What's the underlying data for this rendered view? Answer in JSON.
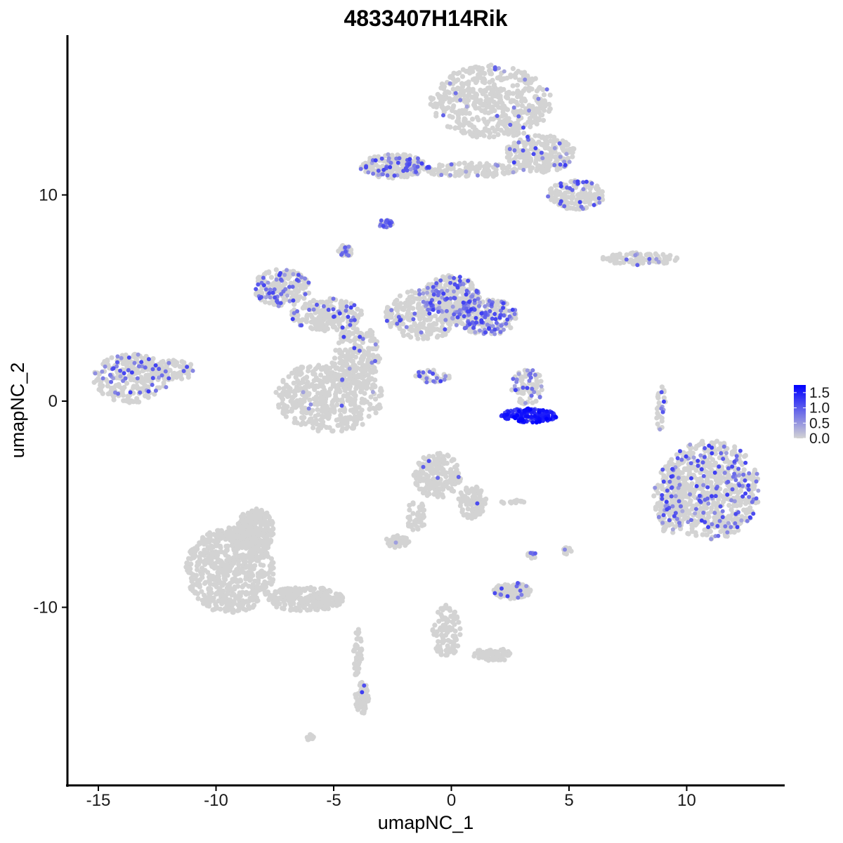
{
  "chart_data": {
    "type": "scatter",
    "title": "4833407H14Rik",
    "xlabel": "umapNC_1",
    "ylabel": "umapNC_2",
    "xlim": [
      -16.4,
      14.3
    ],
    "ylim": [
      -18.5,
      17.7
    ],
    "x_ticks": [
      -15,
      -10,
      -5,
      0,
      5,
      10
    ],
    "x_tick_labels": [
      "-15",
      "-10",
      "-5",
      "0",
      "5",
      "10"
    ],
    "y_ticks": [
      -10,
      0,
      10
    ],
    "y_tick_labels": [
      "-10",
      "0",
      "10"
    ],
    "grid": false,
    "legend": {
      "position": "right",
      "type": "colorbar",
      "range": [
        0,
        1.75
      ],
      "ticks": [
        0.0,
        0.5,
        1.0,
        1.5
      ],
      "tick_labels": [
        "0.0",
        "0.5",
        "1.0",
        "1.5"
      ]
    },
    "colors": {
      "low": "#d3d3d3",
      "high": "#0000ff"
    },
    "clusters": [
      {
        "x": 1.7,
        "y": 14.5,
        "rx": 2.6,
        "ry": 1.8,
        "n": 500,
        "expr_frac": 0.04
      },
      {
        "x": 3.8,
        "y": 12.0,
        "rx": 1.5,
        "ry": 0.9,
        "n": 240,
        "expr_frac": 0.08
      },
      {
        "x": 5.3,
        "y": 10.0,
        "rx": 1.2,
        "ry": 0.7,
        "n": 160,
        "expr_frac": 0.12
      },
      {
        "x": -2.5,
        "y": 11.4,
        "rx": 1.4,
        "ry": 0.6,
        "n": 200,
        "expr_frac": 0.28
      },
      {
        "x": 0.8,
        "y": 11.2,
        "rx": 2.0,
        "ry": 0.35,
        "n": 120,
        "expr_frac": 0.1
      },
      {
        "x": -2.8,
        "y": 8.6,
        "rx": 0.3,
        "ry": 0.2,
        "n": 35,
        "expr_frac": 0.55
      },
      {
        "x": -4.5,
        "y": 7.3,
        "rx": 0.3,
        "ry": 0.3,
        "n": 30,
        "expr_frac": 0.5
      },
      {
        "x": -7.2,
        "y": 5.5,
        "rx": 1.2,
        "ry": 0.9,
        "n": 200,
        "expr_frac": 0.2
      },
      {
        "x": -5.3,
        "y": 4.2,
        "rx": 1.5,
        "ry": 0.8,
        "n": 200,
        "expr_frac": 0.15
      },
      {
        "x": -4.0,
        "y": 2.2,
        "rx": 1.0,
        "ry": 1.5,
        "n": 200,
        "expr_frac": 0.05
      },
      {
        "x": -5.2,
        "y": 0.2,
        "rx": 2.3,
        "ry": 1.7,
        "n": 480,
        "expr_frac": 0.02
      },
      {
        "x": -1.2,
        "y": 4.2,
        "rx": 1.6,
        "ry": 1.2,
        "n": 260,
        "expr_frac": 0.12
      },
      {
        "x": 0.0,
        "y": 5.0,
        "rx": 1.2,
        "ry": 1.1,
        "n": 240,
        "expr_frac": 0.32
      },
      {
        "x": 1.5,
        "y": 4.1,
        "rx": 1.3,
        "ry": 0.9,
        "n": 230,
        "expr_frac": 0.42
      },
      {
        "x": -0.8,
        "y": 1.2,
        "rx": 0.8,
        "ry": 0.3,
        "n": 40,
        "expr_frac": 0.4
      },
      {
        "x": -13.6,
        "y": 1.1,
        "rx": 1.6,
        "ry": 1.2,
        "n": 260,
        "expr_frac": 0.2
      },
      {
        "x": -11.8,
        "y": 1.5,
        "rx": 0.9,
        "ry": 0.5,
        "n": 80,
        "expr_frac": 0.05
      },
      {
        "x": 3.2,
        "y": 0.7,
        "rx": 0.7,
        "ry": 0.9,
        "n": 80,
        "expr_frac": 0.4
      },
      {
        "x": 3.3,
        "y": -0.7,
        "rx": 1.2,
        "ry": 0.35,
        "n": 170,
        "expr_frac": 0.95
      },
      {
        "x": 8.0,
        "y": 6.9,
        "rx": 1.6,
        "ry": 0.3,
        "n": 90,
        "expr_frac": 0.08
      },
      {
        "x": 8.9,
        "y": -0.3,
        "rx": 0.2,
        "ry": 1.1,
        "n": 30,
        "expr_frac": 0.2
      },
      {
        "x": 11.0,
        "y": -4.3,
        "rx": 2.1,
        "ry": 2.4,
        "n": 700,
        "expr_frac": 0.18
      },
      {
        "x": 9.3,
        "y": -4.8,
        "rx": 0.7,
        "ry": 1.7,
        "n": 150,
        "expr_frac": 0.16
      },
      {
        "x": -0.6,
        "y": -3.6,
        "rx": 1.0,
        "ry": 1.1,
        "n": 180,
        "expr_frac": 0.02
      },
      {
        "x": 0.9,
        "y": -4.9,
        "rx": 0.6,
        "ry": 0.8,
        "n": 90,
        "expr_frac": 0.02
      },
      {
        "x": -2.3,
        "y": -6.8,
        "rx": 0.5,
        "ry": 0.3,
        "n": 50,
        "expr_frac": 0.02
      },
      {
        "x": -1.5,
        "y": -5.6,
        "rx": 0.4,
        "ry": 0.8,
        "n": 40,
        "expr_frac": 0.0
      },
      {
        "x": -9.4,
        "y": -8.2,
        "rx": 1.9,
        "ry": 2.1,
        "n": 620,
        "expr_frac": 0.0
      },
      {
        "x": -8.3,
        "y": -6.2,
        "rx": 0.8,
        "ry": 1.0,
        "n": 200,
        "expr_frac": 0.0
      },
      {
        "x": -6.2,
        "y": -9.6,
        "rx": 1.6,
        "ry": 0.6,
        "n": 220,
        "expr_frac": 0.0
      },
      {
        "x": -3.8,
        "y": -14.4,
        "rx": 0.3,
        "ry": 0.8,
        "n": 70,
        "expr_frac": 0.02
      },
      {
        "x": -4.0,
        "y": -12.2,
        "rx": 0.2,
        "ry": 1.2,
        "n": 40,
        "expr_frac": 0.0
      },
      {
        "x": 2.6,
        "y": -9.2,
        "rx": 0.8,
        "ry": 0.4,
        "n": 120,
        "expr_frac": 0.08
      },
      {
        "x": -0.2,
        "y": -11.2,
        "rx": 0.6,
        "ry": 1.3,
        "n": 100,
        "expr_frac": 0.0
      },
      {
        "x": 1.8,
        "y": -12.3,
        "rx": 0.9,
        "ry": 0.3,
        "n": 60,
        "expr_frac": 0.0
      },
      {
        "x": 4.9,
        "y": -7.3,
        "rx": 0.2,
        "ry": 0.2,
        "n": 15,
        "expr_frac": 0.1
      },
      {
        "x": 3.4,
        "y": -7.5,
        "rx": 0.2,
        "ry": 0.2,
        "n": 12,
        "expr_frac": 0.15
      },
      {
        "x": -6.0,
        "y": -16.3,
        "rx": 0.2,
        "ry": 0.15,
        "n": 12,
        "expr_frac": 0.0
      },
      {
        "x": 2.7,
        "y": -4.9,
        "rx": 0.6,
        "ry": 0.1,
        "n": 15,
        "expr_frac": 0.0
      }
    ]
  }
}
